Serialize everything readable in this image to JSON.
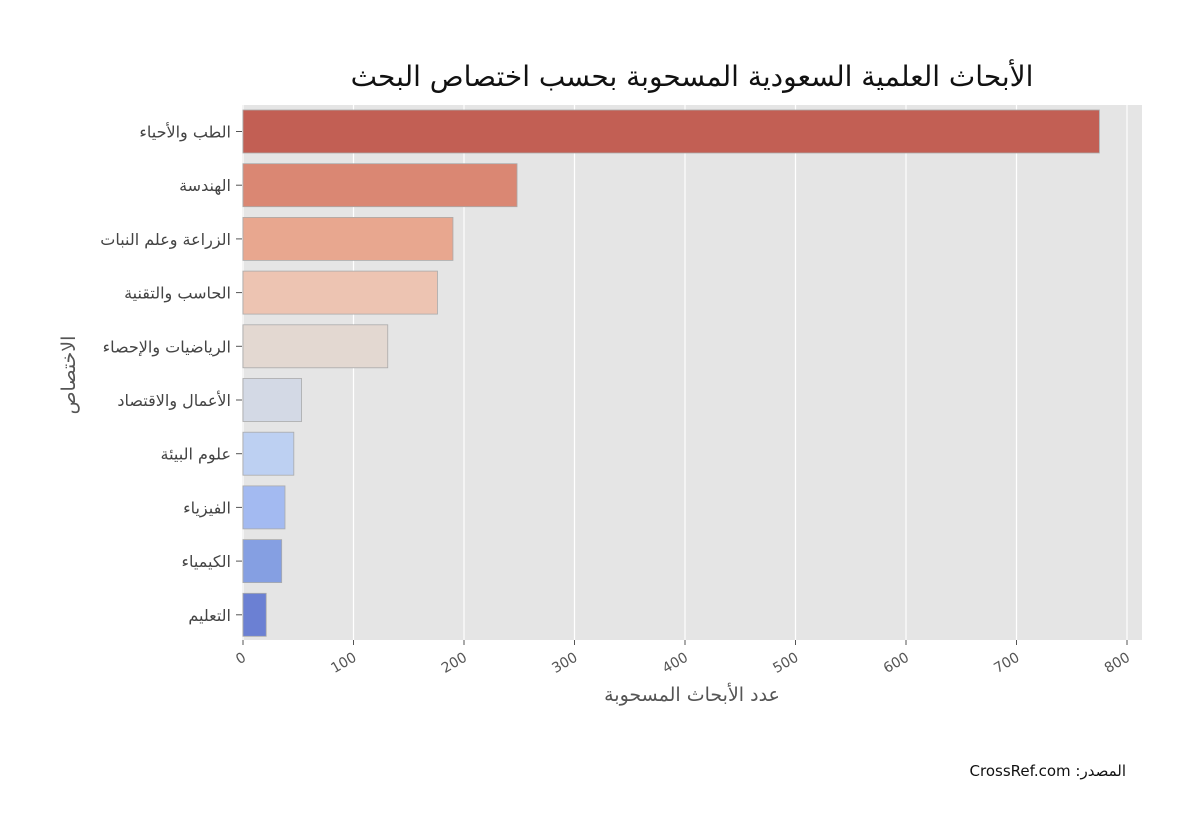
{
  "chart_data": {
    "type": "bar",
    "orientation": "horizontal",
    "title": "الأبحاث العلمية السعودية المسحوبة بحسب اختصاص البحث",
    "xlabel": "عدد الأبحاث المسحوبة",
    "ylabel": "الاختصاص",
    "xlim": [
      0,
      815
    ],
    "xticks": [
      0,
      100,
      200,
      300,
      400,
      500,
      600,
      700,
      800
    ],
    "grid": true,
    "categories": [
      "الطب والأحياء",
      "الهندسة",
      "الزراعة وعلم النبات",
      "الحاسب والتقنية",
      "الرياضيات والإحصاء",
      "الأعمال والاقتصاد",
      "علوم البيئة",
      "الفيزياء",
      "الكيمياء",
      "التعليم"
    ],
    "values": [
      775,
      248,
      190,
      176,
      131,
      53,
      46,
      38,
      35,
      21
    ],
    "colors": [
      "#c25f54",
      "#da8773",
      "#e8a78f",
      "#edc4b2",
      "#e3d8d1",
      "#d3d9e5",
      "#bdd0f2",
      "#a3baf1",
      "#859fe2",
      "#6b80d3"
    ]
  },
  "source_note": "المصدر: CrossRef.com"
}
